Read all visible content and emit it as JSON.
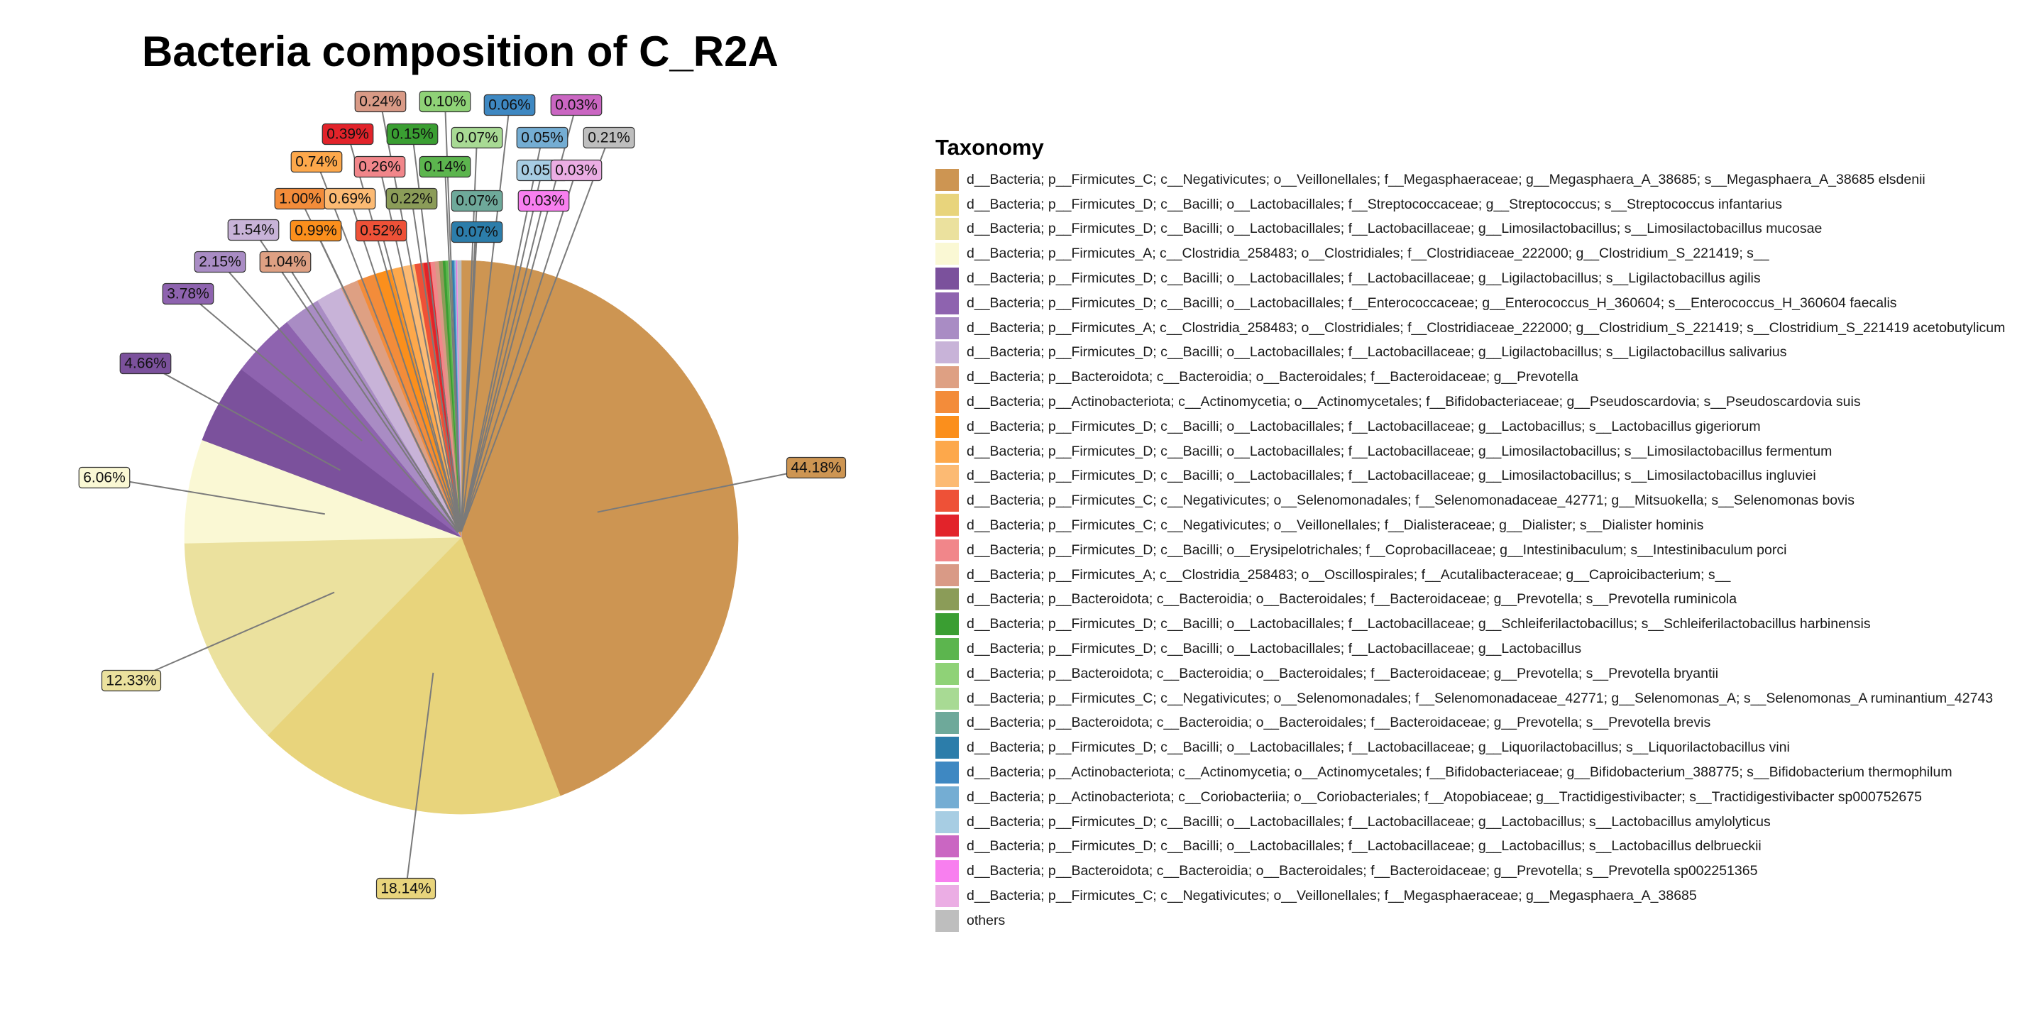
{
  "chart_data": {
    "type": "pie",
    "title": "Bacteria composition of C_R2A",
    "legend_title": "Taxonomy",
    "legend_position": "right",
    "slices": [
      {
        "label": "d__Bacteria; p__Firmicutes_C; c__Negativicutes; o__Veillonellales; f__Megasphaeraceae; g__Megasphaera_A_38685; s__Megasphaera_A_38685 elsdenii",
        "value": 44.18,
        "display": "44.18%",
        "color": "#CD9552"
      },
      {
        "label": "d__Bacteria; p__Firmicutes_D; c__Bacilli; o__Lactobacillales; f__Streptococcaceae; g__Streptococcus; s__Streptococcus infantarius",
        "value": 18.14,
        "display": "18.14%",
        "color": "#E8D47C"
      },
      {
        "label": "d__Bacteria; p__Firmicutes_D; c__Bacilli; o__Lactobacillales; f__Lactobacillaceae; g__Limosilactobacillus; s__Limosilactobacillus mucosae",
        "value": 12.33,
        "display": "12.33%",
        "color": "#EBE19E"
      },
      {
        "label": "d__Bacteria; p__Firmicutes_A; c__Clostridia_258483; o__Clostridiales; f__Clostridiaceae_222000; g__Clostridium_S_221419; s__",
        "value": 6.06,
        "display": "6.06%",
        "color": "#FAF8D4"
      },
      {
        "label": "d__Bacteria; p__Firmicutes_D; c__Bacilli; o__Lactobacillales; f__Lactobacillaceae; g__Ligilactobacillus; s__Ligilactobacillus agilis",
        "value": 4.66,
        "display": "4.66%",
        "color": "#7B519C"
      },
      {
        "label": "d__Bacteria; p__Firmicutes_D; c__Bacilli; o__Lactobacillales; f__Enterococcaceae; g__Enterococcus_H_360604; s__Enterococcus_H_360604 faecalis",
        "value": 3.78,
        "display": "3.78%",
        "color": "#8E63AF"
      },
      {
        "label": "d__Bacteria; p__Firmicutes_A; c__Clostridia_258483; o__Clostridiales; f__Clostridiaceae_222000; g__Clostridium_S_221419; s__Clostridium_S_221419 acetobutylicum",
        "value": 2.15,
        "display": "2.15%",
        "color": "#A98CC4"
      },
      {
        "label": "d__Bacteria; p__Firmicutes_D; c__Bacilli; o__Lactobacillales; f__Lactobacillaceae; g__Ligilactobacillus; s__Ligilactobacillus salivarius",
        "value": 1.54,
        "display": "1.54%",
        "color": "#C8B3D8"
      },
      {
        "label": "d__Bacteria; p__Bacteroidota; c__Bacteroidia; o__Bacteroidales; f__Bacteroidaceae; g__Prevotella",
        "value": 1.04,
        "display": "1.04%",
        "color": "#DEA083"
      },
      {
        "label": "d__Bacteria; p__Actinobacteriota; c__Actinomycetia; o__Actinomycetales; f__Bifidobacteriaceae; g__Pseudoscardovia; s__Pseudoscardovia suis",
        "value": 1.0,
        "display": "1.00%",
        "color": "#F38C3A"
      },
      {
        "label": "d__Bacteria; p__Firmicutes_D; c__Bacilli; o__Lactobacillales; f__Lactobacillaceae; g__Lactobacillus; s__Lactobacillus gigeriorum",
        "value": 0.99,
        "display": "0.99%",
        "color": "#FB8F1C"
      },
      {
        "label": "d__Bacteria; p__Firmicutes_D; c__Bacilli; o__Lactobacillales; f__Lactobacillaceae; g__Limosilactobacillus; s__Limosilactobacillus fermentum",
        "value": 0.74,
        "display": "0.74%",
        "color": "#FDA84B"
      },
      {
        "label": "d__Bacteria; p__Firmicutes_D; c__Bacilli; o__Lactobacillales; f__Lactobacillaceae; g__Limosilactobacillus; s__Limosilactobacillus ingluviei",
        "value": 0.69,
        "display": "0.69%",
        "color": "#FCBA73"
      },
      {
        "label": "d__Bacteria; p__Firmicutes_C; c__Negativicutes; o__Selenomonadales; f__Selenomonadaceae_42771; g__Mitsuokella; s__Selenomonas bovis",
        "value": 0.52,
        "display": "0.52%",
        "color": "#EE5137"
      },
      {
        "label": "d__Bacteria; p__Firmicutes_C; c__Negativicutes; o__Veillonellales; f__Dialisteraceae; g__Dialister; s__Dialister hominis",
        "value": 0.39,
        "display": "0.39%",
        "color": "#E2232A"
      },
      {
        "label": "d__Bacteria; p__Firmicutes_D; c__Bacilli; o__Erysipelotrichales; f__Coprobacillaceae; g__Intestinibaculum; s__Intestinibaculum porci",
        "value": 0.26,
        "display": "0.26%",
        "color": "#F1868A"
      },
      {
        "label": "d__Bacteria; p__Firmicutes_A; c__Clostridia_258483; o__Oscillospirales; f__Acutalibacteraceae; g__Caproicibacterium; s__",
        "value": 0.24,
        "display": "0.24%",
        "color": "#D99A86"
      },
      {
        "label": "d__Bacteria; p__Bacteroidota; c__Bacteroidia; o__Bacteroidales; f__Bacteroidaceae; g__Prevotella; s__Prevotella ruminicola",
        "value": 0.22,
        "display": "0.22%",
        "color": "#8B9C58"
      },
      {
        "label": "d__Bacteria; p__Firmicutes_D; c__Bacilli; o__Lactobacillales; f__Lactobacillaceae; g__Schleiferilactobacillus; s__Schleiferilactobacillus harbinensis",
        "value": 0.15,
        "display": "0.15%",
        "color": "#3A9E32"
      },
      {
        "label": "d__Bacteria; p__Firmicutes_D; c__Bacilli; o__Lactobacillales; f__Lactobacillaceae; g__Lactobacillus",
        "value": 0.14,
        "display": "0.14%",
        "color": "#5CB54E"
      },
      {
        "label": "d__Bacteria; p__Bacteroidota; c__Bacteroidia; o__Bacteroidales; f__Bacteroidaceae; g__Prevotella; s__Prevotella bryantii",
        "value": 0.1,
        "display": "0.10%",
        "color": "#8FD277"
      },
      {
        "label": "d__Bacteria; p__Firmicutes_C; c__Negativicutes; o__Selenomonadales; f__Selenomonadaceae_42771; g__Selenomonas_A; s__Selenomonas_A ruminantium_42743",
        "value": 0.07,
        "display": "0.07%",
        "color": "#A8DA94"
      },
      {
        "label": "d__Bacteria; p__Bacteroidota; c__Bacteroidia; o__Bacteroidales; f__Bacteroidaceae; g__Prevotella; s__Prevotella brevis",
        "value": 0.07,
        "display": "0.07%",
        "color": "#6EA99A"
      },
      {
        "label": "d__Bacteria; p__Firmicutes_D; c__Bacilli; o__Lactobacillales; f__Lactobacillaceae; g__Liquorilactobacillus; s__Liquorilactobacillus vini",
        "value": 0.07,
        "display": "0.07%",
        "color": "#2C7DAA"
      },
      {
        "label": "d__Bacteria; p__Actinobacteriota; c__Actinomycetia; o__Actinomycetales; f__Bifidobacteriaceae; g__Bifidobacterium_388775; s__Bifidobacterium thermophilum",
        "value": 0.06,
        "display": "0.06%",
        "color": "#3E88C2"
      },
      {
        "label": "d__Bacteria; p__Actinobacteriota; c__Coriobacteriia; o__Coriobacteriales; f__Atopobiaceae; g__Tractidigestivibacter; s__Tractidigestivibacter sp000752675",
        "value": 0.05,
        "display": "0.05%",
        "color": "#74ADD3"
      },
      {
        "label": "d__Bacteria; p__Firmicutes_D; c__Bacilli; o__Lactobacillales; f__Lactobacillaceae; g__Lactobacillus; s__Lactobacillus amylolyticus",
        "value": 0.05,
        "display": "0.05%",
        "color": "#A7CDE3"
      },
      {
        "label": "d__Bacteria; p__Firmicutes_D; c__Bacilli; o__Lactobacillales; f__Lactobacillaceae; g__Lactobacillus; s__Lactobacillus delbrueckii",
        "value": 0.03,
        "display": "0.03%",
        "color": "#CA66C2"
      },
      {
        "label": "d__Bacteria; p__Bacteroidota; c__Bacteroidia; o__Bacteroidales; f__Bacteroidaceae; g__Prevotella; s__Prevotella sp002251365",
        "value": 0.03,
        "display": "0.03%",
        "color": "#F87FEF"
      },
      {
        "label": "d__Bacteria; p__Firmicutes_C; c__Negativicutes; o__Veillonellales; f__Megasphaeraceae; g__Megasphaera_A_38685",
        "value": 0.03,
        "display": "0.03%",
        "color": "#EBADE4"
      },
      {
        "label": "others",
        "value": 0.21,
        "display": "0.21%",
        "color": "#BEBEBE"
      }
    ]
  }
}
